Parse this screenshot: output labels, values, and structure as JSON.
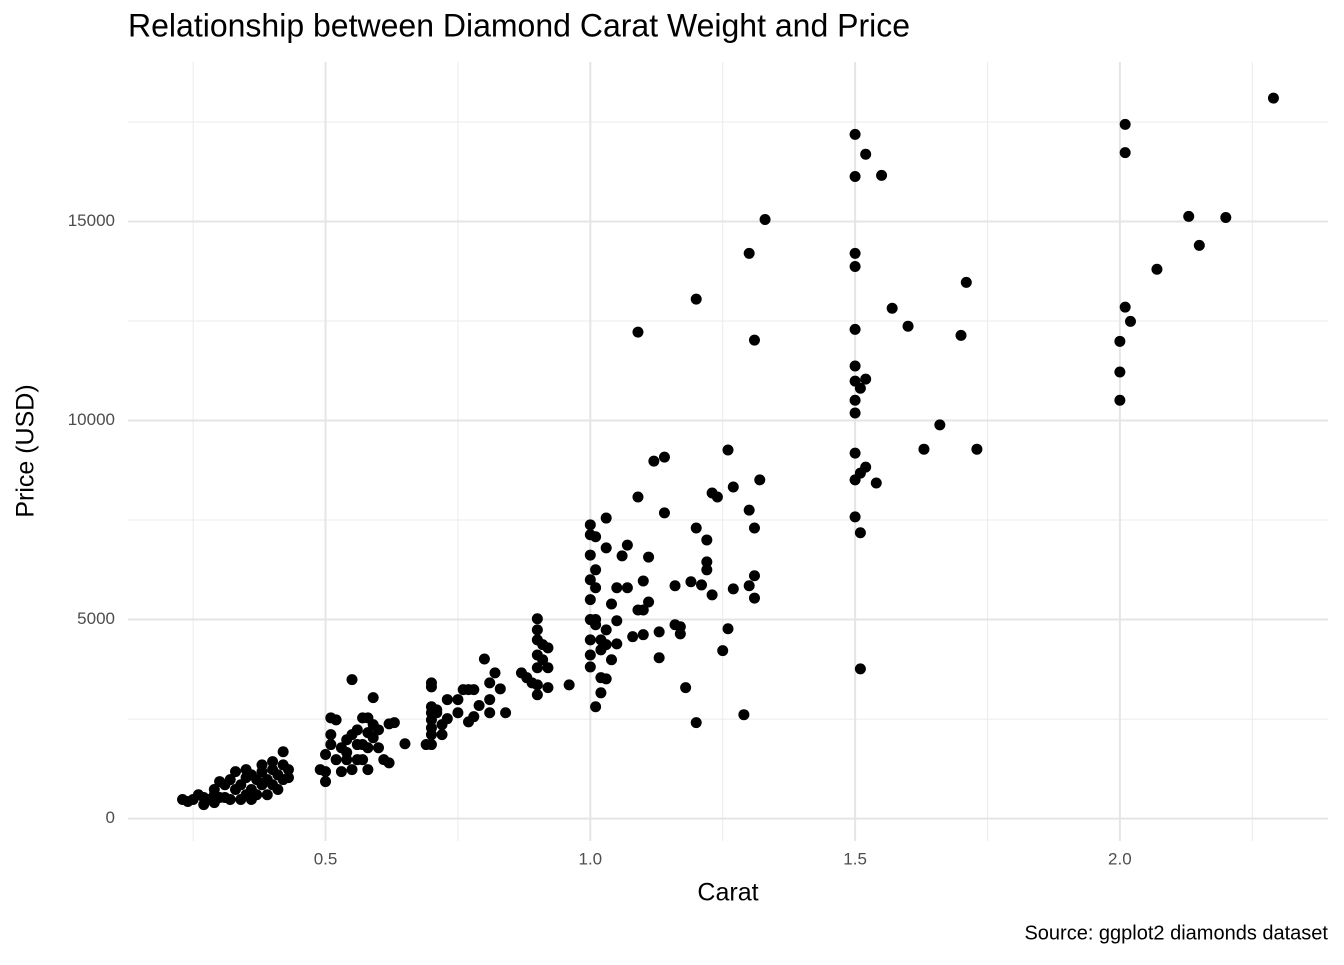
{
  "chart_data": {
    "type": "scatter",
    "title": "Relationship between Diamond Carat Weight and Price",
    "x_label": "Carat",
    "y_label": "Price (USD)",
    "caption": "Source: ggplot2 diamonds dataset",
    "color": "#000000",
    "grid": true,
    "xlim": [
      0.127,
      2.393
    ],
    "ylim": [
      -563,
      19007
    ],
    "xticks": [
      0.5,
      {
        "value": 1,
        "label": "1.0"
      },
      1.5,
      {
        "value": 2,
        "label": "2.0"
      }
    ],
    "yticks": [
      0,
      5000,
      10000,
      15000
    ],
    "x_minor_grid": [
      0.25,
      0.75,
      1.25,
      1.75,
      2.25
    ],
    "y_minor_grid": [
      2500,
      7500,
      12500,
      17500
    ],
    "x": [
      2.29,
      2.01,
      2.01,
      2.13,
      2.2,
      2.15,
      2.07,
      2.01,
      2.02,
      2,
      2,
      2,
      1.5,
      1.52,
      1.55,
      1.5,
      1.5,
      1.5,
      1.71,
      1.57,
      1.6,
      1.5,
      1.7,
      1.5,
      1.5,
      1.52,
      1.51,
      1.5,
      1.5,
      1.66,
      1.63,
      1.73,
      1.5,
      1.52,
      1.51,
      1.5,
      1.54,
      1.5,
      1.51,
      1.51,
      1.33,
      1.3,
      1.2,
      1.09,
      1.31,
      1.26,
      1.14,
      1.12,
      1.32,
      1.27,
      1.23,
      1.24,
      1.09,
      1.3,
      1.14,
      1.03,
      1.2,
      1.31,
      1.22,
      1.07,
      1.03,
      1.11,
      1.06,
      1.22,
      1.22,
      1.31,
      1.19,
      1.1,
      1.3,
      1.16,
      1.21,
      1.27,
      1.05,
      1.07,
      1.23,
      1.31,
      1.11,
      1.04,
      1.1,
      1.09,
      1.05,
      1.16,
      1.17,
      1.13,
      1.26,
      1.1,
      1.08,
      1.17,
      1.05,
      1.25,
      1.13,
      1.03,
      1.18,
      1.02,
      1.29,
      1.2,
      1.01,
      1,
      1,
      1,
      1,
      1,
      1,
      1,
      1,
      1,
      1.01,
      1.01,
      1.01,
      1.01,
      1.02,
      1.02,
      1.01,
      1.03,
      1.04,
      1.03,
      1.02,
      0.9,
      0.9,
      0.9,
      0.9,
      0.9,
      0.9,
      0.9,
      0.91,
      0.92,
      0.92,
      0.92,
      0.91,
      0.96,
      0.87,
      0.88,
      0.89,
      0.8,
      0.82,
      0.81,
      0.83,
      0.81,
      0.81,
      0.84,
      0.79,
      0.7,
      0.7,
      0.7,
      0.7,
      0.7,
      0.7,
      0.7,
      0.7,
      0.71,
      0.72,
      0.73,
      0.75,
      0.76,
      0.77,
      0.78,
      0.75,
      0.77,
      0.72,
      0.69,
      0.71,
      0.73,
      0.78,
      0.59,
      0.6,
      0.62,
      0.63,
      0.65,
      0.62,
      0.61,
      0.59,
      0.6,
      0.58,
      0.59,
      0.51,
      0.52,
      0.55,
      0.5,
      0.51,
      0.51,
      0.53,
      0.54,
      0.55,
      0.56,
      0.56,
      0.57,
      0.58,
      0.57,
      0.57,
      0.58,
      0.54,
      0.53,
      0.5,
      0.5,
      0.49,
      0.52,
      0.55,
      0.56,
      0.58,
      0.54,
      0.23,
      0.24,
      0.25,
      0.26,
      0.27,
      0.28,
      0.29,
      0.29,
      0.3,
      0.3,
      0.31,
      0.32,
      0.32,
      0.33,
      0.33,
      0.34,
      0.34,
      0.35,
      0.35,
      0.36,
      0.36,
      0.37,
      0.37,
      0.38,
      0.38,
      0.39,
      0.39,
      0.4,
      0.4,
      0.41,
      0.41,
      0.42,
      0.42,
      0.42,
      0.43,
      0.43,
      0.36,
      0.31,
      0.29,
      0.27,
      0.35,
      0.38,
      0.4
    ],
    "values": [
      18100,
      17440,
      16730,
      15130,
      15100,
      14400,
      13800,
      12850,
      12490,
      11990,
      11220,
      10510,
      17190,
      16690,
      16160,
      16130,
      14200,
      13870,
      13470,
      12820,
      12370,
      12290,
      12140,
      11370,
      10990,
      11040,
      10810,
      10510,
      10190,
      9890,
      9280,
      9280,
      9180,
      8830,
      8680,
      8510,
      8430,
      7580,
      7180,
      3760,
      15050,
      14200,
      13050,
      12220,
      12020,
      9260,
      9080,
      8980,
      8510,
      8330,
      8180,
      8080,
      8080,
      7750,
      7680,
      7550,
      7300,
      7300,
      7000,
      6870,
      6800,
      6570,
      6600,
      6450,
      6250,
      6100,
      5950,
      5970,
      5850,
      5850,
      5870,
      5770,
      5800,
      5800,
      5620,
      5540,
      5440,
      5390,
      5240,
      5240,
      4970,
      4870,
      4820,
      4690,
      4770,
      4620,
      4570,
      4640,
      4390,
      4220,
      4040,
      3510,
      3290,
      3160,
      2610,
      2410,
      2810,
      7380,
      7130,
      6620,
      6000,
      5500,
      5000,
      4490,
      4110,
      3810,
      7080,
      6250,
      5800,
      5000,
      4490,
      4240,
      4870,
      4740,
      3990,
      4370,
      3540,
      5020,
      4740,
      4490,
      4110,
      3790,
      3360,
      3110,
      3990,
      4290,
      3790,
      3290,
      4370,
      3360,
      3660,
      3540,
      3410,
      4010,
      3660,
      3410,
      3260,
      2990,
      2660,
      2660,
      2840,
      3410,
      3310,
      2810,
      2660,
      2480,
      2280,
      2110,
      1860,
      2730,
      2360,
      2990,
      2990,
      3240,
      3240,
      3240,
      2660,
      2430,
      2110,
      1860,
      2660,
      2510,
      2560,
      2360,
      2230,
      2380,
      2410,
      1880,
      1400,
      1480,
      2030,
      1780,
      2160,
      3040,
      2530,
      2480,
      3490,
      1610,
      1860,
      2110,
      1780,
      1980,
      2110,
      2230,
      1860,
      1860,
      1230,
      1480,
      2530,
      2530,
      1480,
      1180,
      930,
      1180,
      1230,
      1480,
      1230,
      1480,
      1780,
      1660,
      480,
      430,
      480,
      600,
      530,
      480,
      600,
      730,
      930,
      530,
      850,
      980,
      480,
      1180,
      730,
      850,
      480,
      1030,
      600,
      1100,
      730,
      980,
      600,
      1350,
      850,
      980,
      600,
      1230,
      850,
      1100,
      730,
      1350,
      980,
      1680,
      1230,
      1030,
      480,
      530,
      400,
      350,
      1230,
      1180,
      1430
    ]
  }
}
